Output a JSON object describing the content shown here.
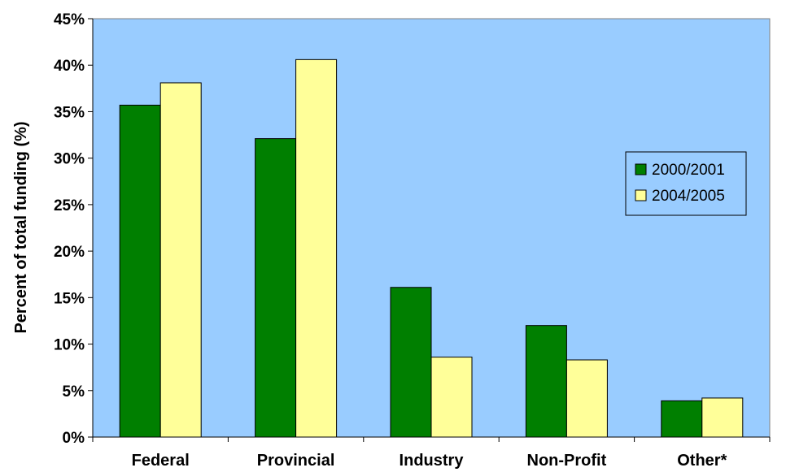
{
  "chart_data": {
    "type": "bar",
    "categories": [
      "Federal",
      "Provincial",
      "Industry",
      "Non-Profit",
      "Other*"
    ],
    "series": [
      {
        "name": "2000/2001",
        "values": [
          35.7,
          32.1,
          16.1,
          12.0,
          3.9
        ],
        "color": "#007f00"
      },
      {
        "name": "2004/2005",
        "values": [
          38.1,
          40.6,
          8.6,
          8.3,
          4.2
        ],
        "color": "#ffff99"
      }
    ],
    "title": "",
    "xlabel": "",
    "ylabel": "Percent of total funding (%)",
    "ylim": [
      0,
      45
    ],
    "yticks": [
      0,
      5,
      10,
      15,
      20,
      25,
      30,
      35,
      40,
      45
    ],
    "ytick_format": "percent",
    "plot_background": "#99ccff",
    "grid": false,
    "legend_position": "right"
  }
}
